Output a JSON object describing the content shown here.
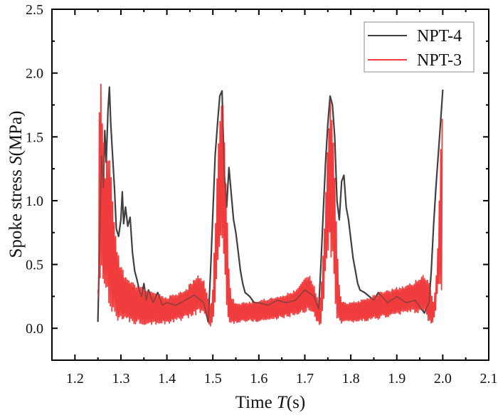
{
  "chart_data": {
    "type": "line",
    "title": "",
    "xlabel": "Time T(s)",
    "xlabel_parts": {
      "prefix": "Time ",
      "symbol": "T",
      "suffix": "(s)"
    },
    "ylabel": "Spoke stress S(MPa)",
    "ylabel_parts": {
      "prefix": "Spoke stress ",
      "symbol": "S",
      "suffix": "(MPa)"
    },
    "xlim": [
      1.15,
      2.1
    ],
    "ylim": [
      -0.25,
      2.5
    ],
    "xticks": [
      "1.2",
      "1.3",
      "1.4",
      "1.5",
      "1.6",
      "1.7",
      "1.8",
      "1.9",
      "2.0",
      "2.1"
    ],
    "xtick_values": [
      1.2,
      1.3,
      1.4,
      1.5,
      1.6,
      1.7,
      1.8,
      1.9,
      2.0,
      2.1
    ],
    "yticks": [
      "0.0",
      "0.5",
      "1.0",
      "1.5",
      "2.0",
      "2.5"
    ],
    "ytick_values": [
      0.0,
      0.5,
      1.0,
      1.5,
      2.0,
      2.5
    ],
    "grid": false,
    "legend": {
      "position": "top-right",
      "entries": [
        "NPT-4",
        "NPT-3"
      ]
    },
    "series": [
      {
        "name": "NPT-4",
        "color": "#404040",
        "style": "line",
        "x": [
          1.25,
          1.255,
          1.258,
          1.262,
          1.265,
          1.268,
          1.272,
          1.275,
          1.278,
          1.282,
          1.286,
          1.29,
          1.295,
          1.3,
          1.303,
          1.306,
          1.31,
          1.315,
          1.32,
          1.325,
          1.33,
          1.335,
          1.34,
          1.345,
          1.35,
          1.355,
          1.36,
          1.37,
          1.38,
          1.39,
          1.4,
          1.42,
          1.44,
          1.46,
          1.48,
          1.49,
          1.495,
          1.5,
          1.505,
          1.51,
          1.515,
          1.52,
          1.525,
          1.53,
          1.535,
          1.54,
          1.545,
          1.55,
          1.555,
          1.56,
          1.565,
          1.57,
          1.58,
          1.59,
          1.6,
          1.62,
          1.64,
          1.66,
          1.68,
          1.7,
          1.72,
          1.73,
          1.735,
          1.74,
          1.745,
          1.75,
          1.755,
          1.76,
          1.765,
          1.77,
          1.775,
          1.78,
          1.785,
          1.79,
          1.795,
          1.8,
          1.805,
          1.81,
          1.815,
          1.82,
          1.83,
          1.84,
          1.85,
          1.86,
          1.88,
          1.9,
          1.92,
          1.94,
          1.96,
          1.97,
          1.975,
          1.98,
          1.985,
          1.99,
          1.995,
          2.0
        ],
        "y": [
          0.05,
          0.9,
          1.35,
          1.1,
          1.55,
          1.3,
          1.72,
          1.89,
          1.6,
          1.35,
          1.1,
          0.78,
          0.72,
          0.85,
          1.07,
          0.82,
          0.95,
          0.8,
          0.87,
          0.6,
          0.45,
          0.38,
          0.3,
          0.25,
          0.35,
          0.22,
          0.3,
          0.2,
          0.28,
          0.18,
          0.2,
          0.18,
          0.22,
          0.26,
          0.2,
          0.05,
          0.45,
          0.9,
          1.35,
          1.6,
          1.82,
          1.86,
          1.2,
          0.95,
          1.26,
          1.05,
          0.85,
          0.75,
          0.6,
          0.45,
          0.35,
          0.28,
          0.25,
          0.2,
          0.2,
          0.18,
          0.22,
          0.2,
          0.22,
          0.3,
          0.25,
          0.15,
          0.5,
          0.9,
          1.3,
          1.6,
          1.82,
          1.75,
          1.5,
          1.0,
          0.85,
          1.15,
          1.2,
          0.95,
          0.85,
          0.7,
          0.55,
          0.45,
          0.35,
          0.3,
          0.28,
          0.25,
          0.22,
          0.28,
          0.2,
          0.25,
          0.2,
          0.22,
          0.12,
          0.2,
          0.45,
          0.8,
          1.1,
          1.35,
          1.6,
          1.87
        ]
      },
      {
        "name": "NPT-3",
        "color": "#f03c3c",
        "style": "dense-oscillation",
        "envelope_x": [
          1.25,
          1.252,
          1.255,
          1.258,
          1.262,
          1.266,
          1.27,
          1.275,
          1.28,
          1.285,
          1.29,
          1.3,
          1.31,
          1.32,
          1.33,
          1.35,
          1.37,
          1.4,
          1.42,
          1.44,
          1.46,
          1.47,
          1.48,
          1.49,
          1.495,
          1.5,
          1.505,
          1.51,
          1.515,
          1.52,
          1.525,
          1.53,
          1.535,
          1.54,
          1.55,
          1.56,
          1.6,
          1.64,
          1.68,
          1.7,
          1.71,
          1.72,
          1.73,
          1.735,
          1.74,
          1.745,
          1.75,
          1.755,
          1.76,
          1.765,
          1.77,
          1.775,
          1.78,
          1.79,
          1.82,
          1.86,
          1.9,
          1.93,
          1.95,
          1.96,
          1.97,
          1.975,
          1.98,
          1.985,
          1.99,
          1.995,
          2.0
        ],
        "envelope_upper": [
          0.3,
          1.4,
          2.15,
          1.8,
          1.55,
          1.3,
          1.38,
          1.5,
          1.2,
          0.9,
          0.65,
          0.5,
          0.42,
          0.38,
          0.35,
          0.32,
          0.28,
          0.25,
          0.27,
          0.3,
          0.4,
          0.42,
          0.38,
          0.25,
          0.15,
          0.35,
          0.8,
          1.25,
          1.7,
          1.85,
          1.6,
          1.0,
          0.5,
          0.25,
          0.2,
          0.2,
          0.22,
          0.25,
          0.3,
          0.4,
          0.42,
          0.35,
          0.2,
          0.3,
          0.6,
          1.0,
          1.5,
          1.8,
          1.75,
          1.3,
          0.7,
          0.35,
          0.22,
          0.2,
          0.22,
          0.28,
          0.32,
          0.35,
          0.4,
          0.42,
          0.38,
          0.3,
          0.2,
          0.35,
          0.7,
          1.5,
          1.78
        ],
        "envelope_lower": [
          0.05,
          0.1,
          0.25,
          0.4,
          0.35,
          0.2,
          0.15,
          0.1,
          0.08,
          0.1,
          0.07,
          0.05,
          0.04,
          0.04,
          0.03,
          0.03,
          0.03,
          0.03,
          0.05,
          0.07,
          0.1,
          0.12,
          0.1,
          0.05,
          0.0,
          0.02,
          0.2,
          0.45,
          0.6,
          0.6,
          0.4,
          0.1,
          0.03,
          0.03,
          0.04,
          0.05,
          0.05,
          0.07,
          0.1,
          0.12,
          0.13,
          0.1,
          0.02,
          0.02,
          0.15,
          0.4,
          0.55,
          0.6,
          0.45,
          0.2,
          0.05,
          0.03,
          0.03,
          0.04,
          0.05,
          0.07,
          0.1,
          0.12,
          0.12,
          0.1,
          0.05,
          0.01,
          0.05,
          0.15,
          0.3,
          0.3,
          0.3
        ]
      }
    ]
  }
}
